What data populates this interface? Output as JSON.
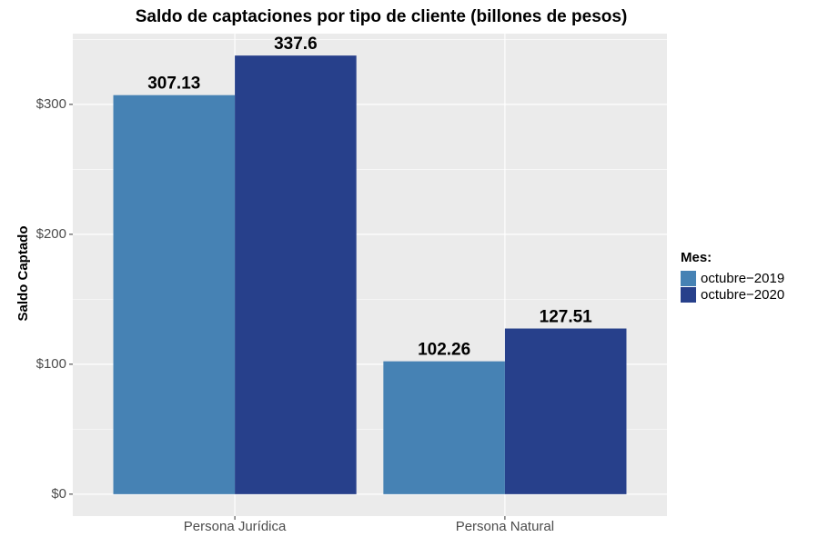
{
  "chart_data": {
    "type": "bar",
    "title": "Saldo de captaciones por tipo de cliente (billones de pesos)",
    "y_label": "Saldo Captado",
    "categories": [
      "Persona Jurídica",
      "Persona Natural"
    ],
    "series": [
      {
        "name": "octubre−2019",
        "color": "#4682b4",
        "values": [
          307.13,
          102.26
        ]
      },
      {
        "name": "octubre−2020",
        "color": "#27408b",
        "values": [
          337.6,
          127.51
        ]
      }
    ],
    "legend_title": "Mes:",
    "legend_position": "right",
    "ylim": [
      -16.88,
      354.48
    ],
    "yticks": [
      {
        "value": 0,
        "label": "$0"
      },
      {
        "value": 100,
        "label": "$100"
      },
      {
        "value": 200,
        "label": "$200"
      },
      {
        "value": 300,
        "label": "$300"
      }
    ],
    "minor_yticks": [
      50,
      150,
      250,
      350
    ],
    "grid": true
  }
}
